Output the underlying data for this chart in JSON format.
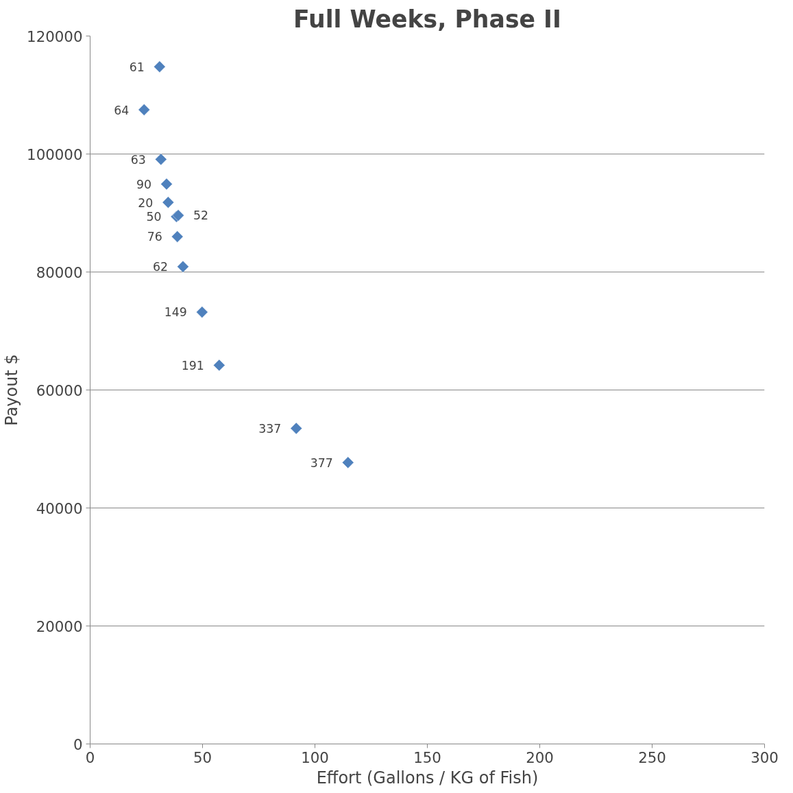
{
  "chart_data": {
    "type": "scatter",
    "title": "Full Weeks, Phase II",
    "xlabel": "Effort (Gallons / KG of Fish)",
    "ylabel": "Payout $",
    "series": [
      {
        "color": "#4f81bd",
        "x": [
          30.9,
          24.0,
          31.5,
          34.0,
          34.7,
          38.4,
          39.2,
          38.8,
          41.3,
          49.8,
          57.4,
          91.7,
          114.7
        ],
        "values": [
          114800,
          107500,
          99100,
          94900,
          91800,
          89400,
          89600,
          86000,
          80900,
          73200,
          64200,
          53500,
          47700
        ]
      }
    ],
    "annotations": [
      {
        "text": "61",
        "x": 30.9,
        "y": 114800
      },
      {
        "text": "64",
        "x": 24.0,
        "y": 107500
      },
      {
        "text": "63",
        "x": 31.5,
        "y": 99100
      },
      {
        "text": "90",
        "x": 34.0,
        "y": 94900
      },
      {
        "text": "20",
        "x": 34.7,
        "y": 91800
      },
      {
        "text": "50",
        "x": 38.4,
        "y": 89400
      },
      {
        "text": "52",
        "x": 39.2,
        "y": 89600
      },
      {
        "text": "76",
        "x": 38.8,
        "y": 86000
      },
      {
        "text": "62",
        "x": 41.3,
        "y": 80900
      },
      {
        "text": "149",
        "x": 49.8,
        "y": 73200
      },
      {
        "text": "191",
        "x": 57.4,
        "y": 64200
      },
      {
        "text": "337",
        "x": 91.7,
        "y": 53500
      },
      {
        "text": "377",
        "x": 114.7,
        "y": 47700
      }
    ],
    "xlim": [
      0,
      300
    ],
    "xticks": [
      0,
      50,
      100,
      150,
      200,
      250,
      300
    ],
    "ylim": [
      0,
      120000
    ],
    "yticks": [
      0,
      20000,
      40000,
      60000,
      80000,
      100000,
      120000
    ],
    "grid": "y",
    "marker": "diamond"
  }
}
